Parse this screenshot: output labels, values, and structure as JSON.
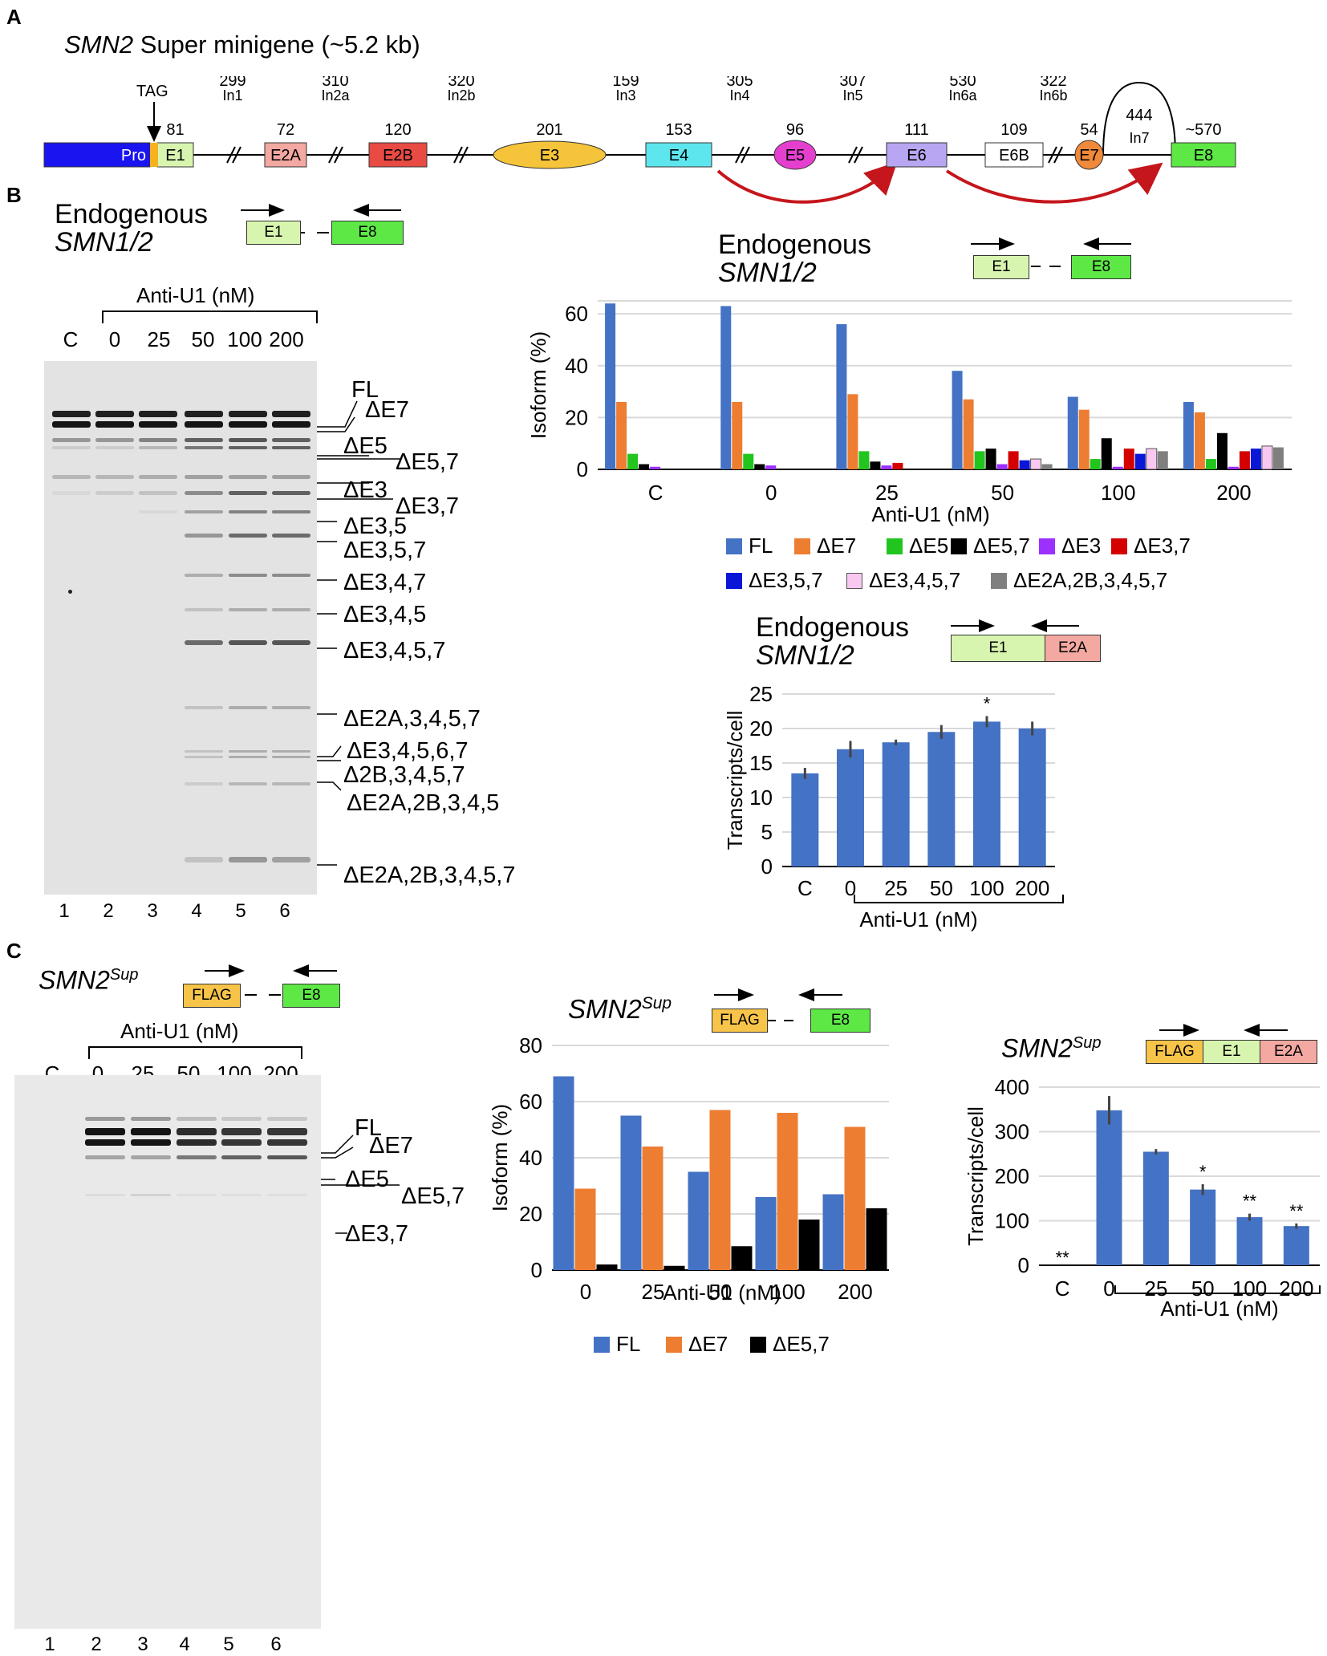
{
  "panels": {
    "a": "A",
    "b": "B",
    "c": "C"
  },
  "panel_a": {
    "title_italic": "SMN2",
    "title_rest": "Super minigene (~5.2 kb)",
    "tag_label": "TAG",
    "segments": [
      {
        "name": "Pro",
        "color": "#1a14f0",
        "text_color": "#ffffff"
      },
      {
        "name": "E1",
        "size": "81",
        "color": "#d8f5b0"
      },
      {
        "name": "E2A",
        "size": "72",
        "color": "#f3a8a2"
      },
      {
        "name": "E2B",
        "size": "120",
        "color": "#e84a44"
      },
      {
        "name": "E3",
        "size": "201",
        "color": "#f6c43a"
      },
      {
        "name": "E4",
        "size": "153",
        "color": "#5ee6ee"
      },
      {
        "name": "E5",
        "size": "96",
        "color": "#e53fd0"
      },
      {
        "name": "E6",
        "size": "111",
        "color": "#b8a6f2"
      },
      {
        "name": "E6B",
        "size": "109",
        "color": "#ffffff"
      },
      {
        "name": "E7",
        "size": "54",
        "color": "#f08a3a"
      },
      {
        "name": "E8",
        "size": "~570",
        "color": "#5de846"
      }
    ],
    "introns": [
      {
        "name": "In1",
        "size": "299"
      },
      {
        "name": "In2a",
        "size": "310"
      },
      {
        "name": "In2b",
        "size": "320"
      },
      {
        "name": "In3",
        "size": "159"
      },
      {
        "name": "In4",
        "size": "305"
      },
      {
        "name": "In5",
        "size": "307"
      },
      {
        "name": "In6a",
        "size": "530"
      },
      {
        "name": "In6b",
        "size": "322"
      },
      {
        "name": "In7",
        "size": "444"
      }
    ],
    "arrow_color": "#c4161c"
  },
  "panel_b": {
    "gel_title_1": "Endogenous",
    "gel_title_2": "SMN1/2",
    "primer_left": "E1",
    "primer_right": "E8",
    "conc_header": "Anti-U1 (nM)",
    "lane_headers": [
      "C",
      "0",
      "25",
      "50",
      "100",
      "200"
    ],
    "lane_numbers": [
      "1",
      "2",
      "3",
      "4",
      "5",
      "6"
    ],
    "isoform_labels": [
      "FL",
      "ΔE7",
      "ΔE5",
      "ΔE5,7",
      "ΔE3",
      "ΔE3,7",
      "ΔE3,5",
      "ΔE3,5,7",
      "ΔE3,4,7",
      "ΔE3,4,5",
      "ΔE3,4,5,7",
      "ΔE2A,3,4,5,7",
      "ΔE3,4,5,6,7",
      "Δ2B,3,4,5,7",
      "ΔE2A,2B,3,4,5",
      "ΔE2A,2B,3,4,5,7"
    ],
    "chart1_title_1": "Endogenous",
    "chart1_title_2": "SMN1/2",
    "chart2_title_1": "Endogenous",
    "chart2_title_2": "SMN1/2",
    "chart2_primer_left": "E1",
    "chart2_primer_right": "E2A"
  },
  "panel_c": {
    "gel_title": "SMN2",
    "gel_title_sup": "Sup",
    "primer_left": "FLAG",
    "primer_right": "E8",
    "conc_header": "Anti-U1 (nM)",
    "lane_headers": [
      "C",
      "0",
      "25",
      "50",
      "100",
      "200"
    ],
    "lane_numbers": [
      "1",
      "2",
      "3",
      "4",
      "5",
      "6"
    ],
    "isoform_labels": [
      "FL",
      "ΔE7",
      "ΔE5",
      "ΔE5,7",
      "ΔE3,7"
    ],
    "chart1_title": "SMN2",
    "chart1_title_sup": "Sup",
    "chart1_primer_left": "FLAG",
    "chart1_primer_right": "E8",
    "chart2_title": "SMN2",
    "chart2_title_sup": "Sup",
    "chart2_primers": [
      "FLAG",
      "E1",
      "E2A"
    ]
  },
  "colors": {
    "blue": "#4472c4",
    "orange": "#ed7d31",
    "green": "#22c51e",
    "black": "#000000",
    "purple": "#9b30ff",
    "red": "#d40000",
    "navy": "#0a17d6",
    "pink": "#f8c8f0",
    "gray": "#7f7f7f"
  },
  "chart_data": [
    {
      "id": "b_isoforms",
      "type": "bar",
      "categories": [
        "C",
        "0",
        "25",
        "50",
        "100",
        "200"
      ],
      "xlabel": "Anti-U1 (nM)",
      "ylabel": "Isoform (%)",
      "ylim": [
        0,
        65
      ],
      "yticks": [
        0,
        20,
        40,
        60
      ],
      "grid": true,
      "legend_position": "bottom",
      "series": [
        {
          "name": "FL",
          "color": "#4472c4",
          "values": [
            64,
            63,
            56,
            38,
            28,
            26
          ]
        },
        {
          "name": "ΔE7",
          "color": "#ed7d31",
          "values": [
            26,
            26,
            29,
            27,
            23,
            22
          ]
        },
        {
          "name": "ΔE5",
          "color": "#22c51e",
          "values": [
            6,
            6,
            7,
            7,
            4,
            4
          ]
        },
        {
          "name": "ΔE5,7",
          "color": "#000000",
          "values": [
            2,
            2,
            3,
            8,
            12,
            14
          ]
        },
        {
          "name": "ΔE3",
          "color": "#9b30ff",
          "values": [
            1,
            1.5,
            1.5,
            2,
            1,
            1
          ]
        },
        {
          "name": "ΔE3,7",
          "color": "#d40000",
          "values": [
            0,
            0,
            2.5,
            7,
            8,
            7
          ]
        },
        {
          "name": "ΔE3,5,7",
          "color": "#0a17d6",
          "values": [
            0,
            0,
            0,
            3.5,
            6,
            8
          ]
        },
        {
          "name": "ΔE3,4,5,7",
          "color": "#f8c8f0",
          "values": [
            0,
            0,
            0,
            4,
            8,
            9
          ]
        },
        {
          "name": "ΔE2A,2B,3,4,5,7",
          "color": "#7f7f7f",
          "values": [
            0,
            0,
            0,
            2,
            7,
            8.5
          ]
        }
      ]
    },
    {
      "id": "b_transcripts",
      "type": "bar",
      "categories": [
        "C",
        "0",
        "25",
        "50",
        "100",
        "200"
      ],
      "xlabel": "Anti-U1 (nM)",
      "ylabel": "Transcripts/cell",
      "ylim": [
        0,
        25
      ],
      "yticks": [
        0,
        5,
        10,
        15,
        20,
        25
      ],
      "grid": true,
      "series": [
        {
          "name": "",
          "color": "#4472c4",
          "values": [
            13.5,
            17,
            18,
            19.5,
            21,
            20
          ],
          "errors": [
            0.8,
            1.2,
            0.4,
            1.0,
            0.8,
            1.0
          ]
        }
      ],
      "annotations": [
        {
          "category": "100",
          "text": "*"
        }
      ]
    },
    {
      "id": "c_isoforms",
      "type": "bar",
      "categories": [
        "0",
        "25",
        "50",
        "100",
        "200"
      ],
      "xlabel": "Anti-U1 (nM)",
      "ylabel": "Isoform (%)",
      "ylim": [
        0,
        80
      ],
      "yticks": [
        0,
        20,
        40,
        60,
        80
      ],
      "grid": true,
      "legend_position": "bottom",
      "series": [
        {
          "name": "FL",
          "color": "#4472c4",
          "values": [
            69,
            55,
            35,
            26,
            27
          ]
        },
        {
          "name": "ΔE7",
          "color": "#ed7d31",
          "values": [
            29,
            44,
            57,
            56,
            51
          ]
        },
        {
          "name": "ΔE5,7",
          "color": "#000000",
          "values": [
            2,
            1.5,
            8.5,
            18,
            22
          ]
        }
      ]
    },
    {
      "id": "c_transcripts",
      "type": "bar",
      "categories": [
        "C",
        "0",
        "25",
        "50",
        "100",
        "200"
      ],
      "xlabel": "Anti-U1 (nM)",
      "ylabel": "Transcripts/cell",
      "ylim": [
        0,
        400
      ],
      "yticks": [
        0,
        100,
        200,
        300,
        400
      ],
      "grid": true,
      "series": [
        {
          "name": "",
          "color": "#4472c4",
          "values": [
            0,
            348,
            255,
            170,
            108,
            88
          ],
          "errors": [
            0,
            32,
            6,
            12,
            8,
            6
          ]
        }
      ],
      "annotations": [
        {
          "category": "C",
          "text": "**"
        },
        {
          "category": "50",
          "text": "*"
        },
        {
          "category": "100",
          "text": "**"
        },
        {
          "category": "200",
          "text": "**"
        }
      ]
    }
  ]
}
